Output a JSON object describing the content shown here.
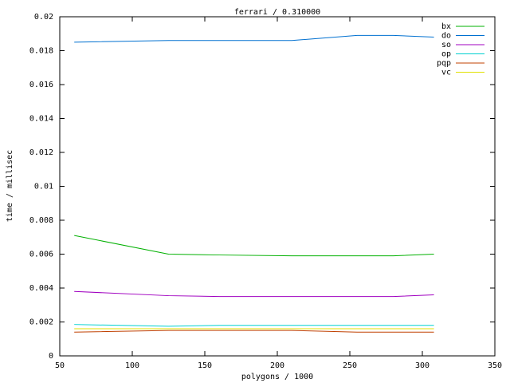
{
  "chart_data": {
    "type": "line",
    "title": "ferrari / 0.310000",
    "x_label": "polygons / 1000",
    "y_label": "time / millisec",
    "x": [
      60,
      125,
      160,
      210,
      255,
      280,
      308
    ],
    "series": [
      {
        "name": "bx",
        "color": "#00b000",
        "values": [
          0.0071,
          0.006,
          0.00595,
          0.0059,
          0.0059,
          0.0059,
          0.006
        ]
      },
      {
        "name": "do",
        "color": "#0070d0",
        "values": [
          0.0185,
          0.0186,
          0.0186,
          0.0186,
          0.0189,
          0.0189,
          0.0188
        ]
      },
      {
        "name": "so",
        "color": "#a000c0",
        "values": [
          0.0038,
          0.00355,
          0.0035,
          0.0035,
          0.0035,
          0.0035,
          0.0036
        ]
      },
      {
        "name": "op",
        "color": "#00d0d0",
        "values": [
          0.00185,
          0.00175,
          0.0018,
          0.0018,
          0.0018,
          0.0018,
          0.0018
        ]
      },
      {
        "name": "pqp",
        "color": "#c04000",
        "values": [
          0.0014,
          0.0015,
          0.0015,
          0.0015,
          0.0014,
          0.0014,
          0.0014
        ]
      },
      {
        "name": "vc",
        "color": "#e0e000",
        "values": [
          0.0016,
          0.0016,
          0.0016,
          0.0016,
          0.0016,
          0.0016,
          0.0016
        ]
      }
    ],
    "xlim": [
      50,
      350
    ],
    "xticks": [
      50,
      100,
      150,
      200,
      250,
      300,
      350
    ],
    "ylim": [
      0,
      0.02
    ],
    "yticks": [
      0,
      0.002,
      0.004,
      0.006,
      0.008,
      0.01,
      0.012,
      0.014,
      0.016,
      0.018,
      0.02
    ],
    "legend": "top-right"
  }
}
